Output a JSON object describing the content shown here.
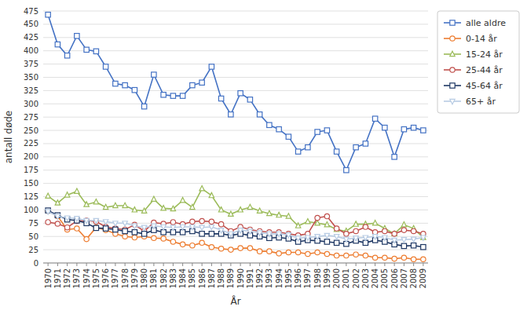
{
  "chart_data": {
    "type": "line",
    "xlabel": "År",
    "ylabel": "antall døde",
    "x": [
      1970,
      1971,
      1972,
      1973,
      1974,
      1975,
      1976,
      1977,
      1978,
      1979,
      1980,
      1981,
      1982,
      1983,
      1984,
      1985,
      1986,
      1987,
      1988,
      1989,
      1990,
      1991,
      1992,
      1993,
      1994,
      1995,
      1996,
      1997,
      1998,
      1999,
      2000,
      2001,
      2002,
      2003,
      2004,
      2005,
      2006,
      2007,
      2008,
      2009
    ],
    "xlim": [
      1969.5,
      2009.5
    ],
    "xticks": [
      1970,
      1971,
      1972,
      1973,
      1974,
      1975,
      1976,
      1977,
      1978,
      1979,
      1980,
      1981,
      1982,
      1983,
      1984,
      1985,
      1986,
      1987,
      1988,
      1989,
      1990,
      1991,
      1992,
      1993,
      1994,
      1995,
      1996,
      1997,
      1998,
      1999,
      2000,
      2001,
      2002,
      2003,
      2004,
      2005,
      2006,
      2007,
      2008,
      2009
    ],
    "ylim": [
      0,
      475
    ],
    "yticks": [
      0,
      25,
      50,
      75,
      100,
      125,
      150,
      175,
      200,
      225,
      250,
      275,
      300,
      325,
      350,
      375,
      400,
      425,
      450,
      475
    ],
    "grid": "y",
    "legend": "right",
    "series": [
      {
        "name": "alle aldre",
        "color": "#4472C4",
        "marker": "square",
        "values": [
          468,
          412,
          391,
          428,
          402,
          399,
          370,
          338,
          335,
          326,
          295,
          355,
          317,
          315,
          315,
          335,
          340,
          370,
          310,
          280,
          320,
          308,
          280,
          260,
          252,
          238,
          210,
          218,
          247,
          250,
          210,
          175,
          218,
          225,
          272,
          255,
          200,
          252,
          255,
          250
        ]
      },
      {
        "name": "0-14 år",
        "color": "#ED7D31",
        "marker": "circle",
        "values": [
          98,
          88,
          63,
          65,
          45,
          67,
          62,
          55,
          50,
          48,
          50,
          47,
          46,
          40,
          35,
          33,
          38,
          30,
          27,
          25,
          28,
          28,
          22,
          22,
          18,
          20,
          20,
          17,
          20,
          17,
          14,
          14,
          16,
          14,
          10,
          10,
          8,
          10,
          7,
          7
        ]
      },
      {
        "name": "15-24 år",
        "color": "#9BBB59",
        "marker": "triangle-up",
        "values": [
          126,
          113,
          128,
          135,
          110,
          115,
          105,
          108,
          108,
          100,
          98,
          120,
          103,
          102,
          118,
          105,
          140,
          127,
          100,
          92,
          100,
          105,
          98,
          93,
          90,
          88,
          70,
          78,
          75,
          72,
          63,
          60,
          73,
          73,
          75,
          65,
          55,
          72,
          65,
          48
        ]
      },
      {
        "name": "25-44 år",
        "color": "#C0504D",
        "marker": "circle",
        "values": [
          77,
          74,
          67,
          79,
          80,
          78,
          68,
          65,
          63,
          72,
          60,
          76,
          74,
          77,
          73,
          78,
          79,
          78,
          73,
          60,
          68,
          63,
          60,
          58,
          58,
          55,
          52,
          55,
          85,
          88,
          65,
          55,
          60,
          68,
          58,
          60,
          55,
          62,
          60,
          55
        ]
      },
      {
        "name": "45-64 år",
        "color": "#1F3864",
        "marker": "square",
        "values": [
          99,
          90,
          82,
          80,
          75,
          66,
          65,
          63,
          60,
          58,
          55,
          62,
          58,
          58,
          58,
          60,
          55,
          55,
          55,
          52,
          55,
          52,
          50,
          47,
          48,
          46,
          40,
          43,
          42,
          40,
          38,
          36,
          42,
          38,
          43,
          40,
          35,
          32,
          33,
          30
        ]
      },
      {
        "name": "65+ år",
        "color": "#B8CCE4",
        "marker": "triangle-down",
        "values": [
          97,
          88,
          85,
          84,
          80,
          80,
          78,
          75,
          75,
          70,
          67,
          70,
          68,
          67,
          68,
          68,
          67,
          68,
          62,
          55,
          62,
          60,
          57,
          55,
          55,
          53,
          47,
          48,
          50,
          52,
          50,
          45,
          47,
          48,
          50,
          48,
          43,
          44,
          45,
          48
        ]
      }
    ]
  }
}
